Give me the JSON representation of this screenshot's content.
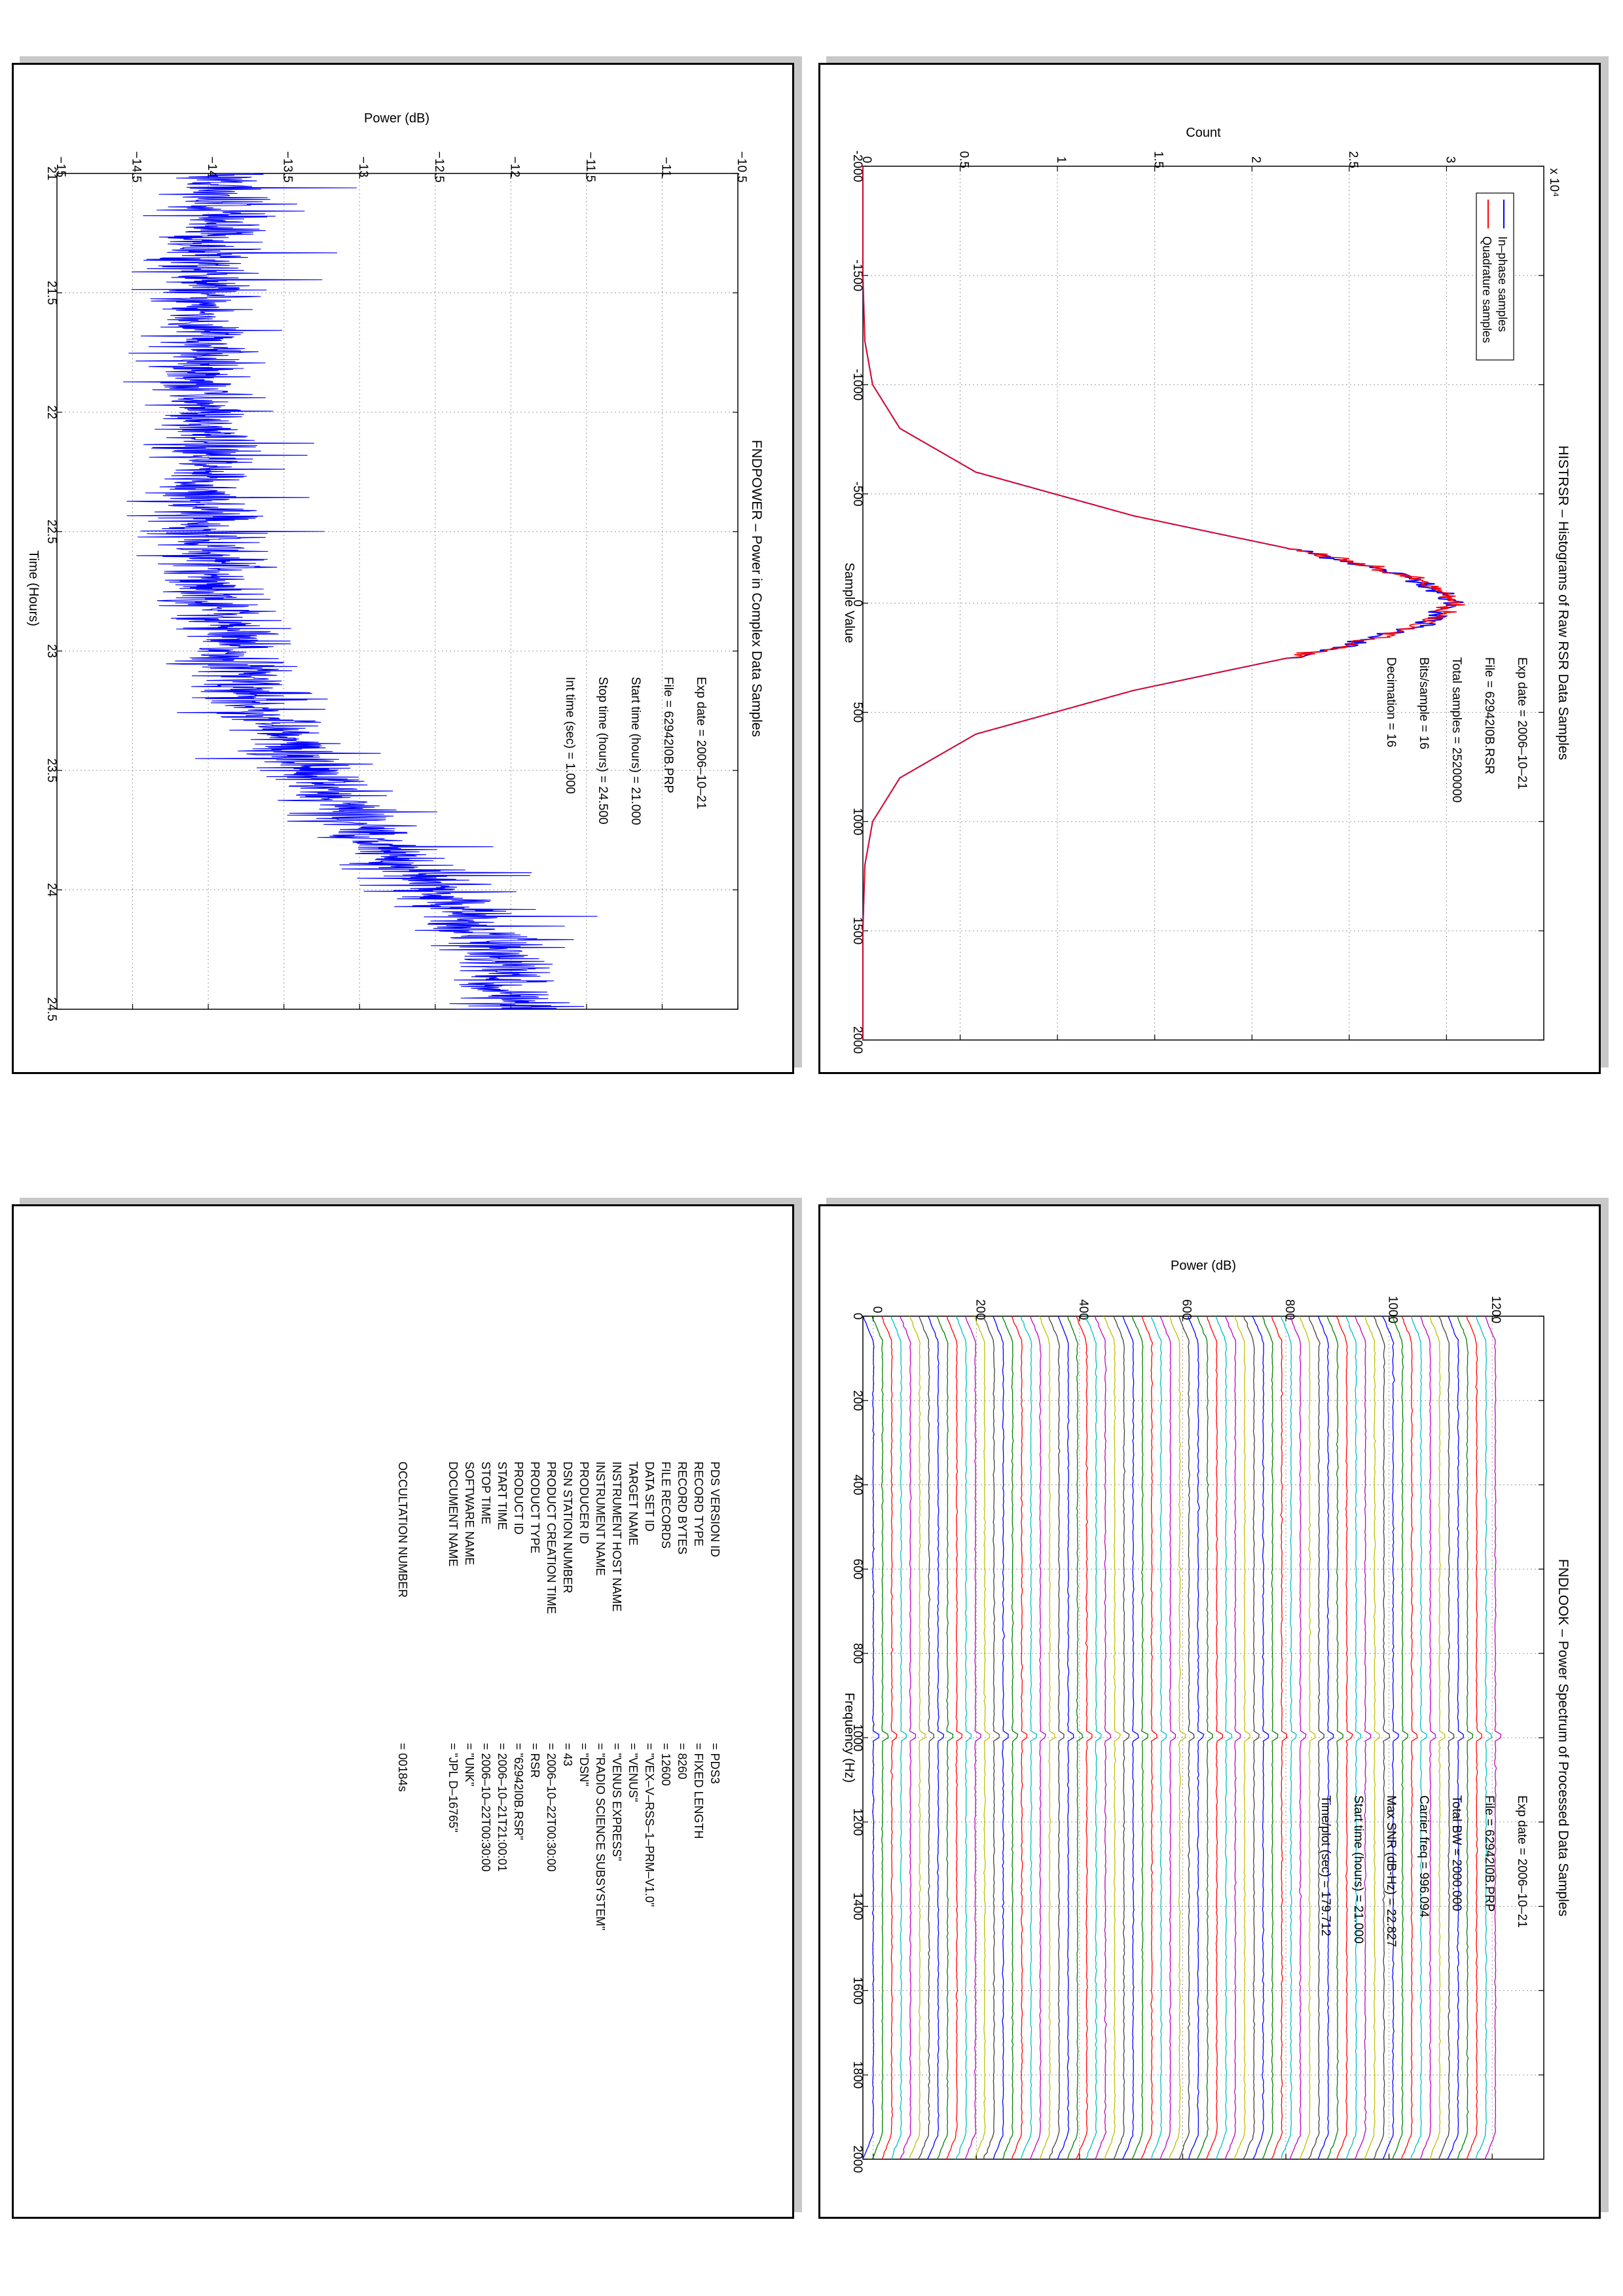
{
  "chart_data": [
    {
      "type": "line",
      "title": "HISTRSR – Histograms of Raw RSR Data Samples",
      "xlabel": "Sample Value",
      "ylabel": "Count",
      "y_multiplier": "x 10⁴",
      "xlim": [
        -2000,
        2000
      ],
      "ylim": [
        0,
        3.5
      ],
      "xticks": [
        "-2000",
        "-1500",
        "-1000",
        "-500",
        "0",
        "500",
        "1000",
        "1500",
        "2000"
      ],
      "yticks": [
        "0",
        "0.5",
        "1",
        "1.5",
        "2",
        "2.5",
        "3"
      ],
      "grid": true,
      "legend_position": "top-right",
      "series": [
        {
          "name": "In–phase samples",
          "color": "#0000ff",
          "x": [
            -2000,
            -1500,
            -1200,
            -1000,
            -800,
            -600,
            -400,
            -300,
            -200,
            -100,
            0,
            100,
            200,
            300,
            400,
            600,
            800,
            1000,
            1200,
            1500,
            2000
          ],
          "y": [
            0,
            0,
            0.01,
            0.05,
            0.19,
            0.58,
            1.39,
            1.92,
            2.46,
            2.88,
            3.04,
            2.88,
            2.46,
            1.92,
            1.39,
            0.58,
            0.19,
            0.05,
            0.01,
            0,
            0
          ]
        },
        {
          "name": "Quadrature samples",
          "color": "#ff0000",
          "x": [
            -2000,
            -1500,
            -1200,
            -1000,
            -800,
            -600,
            -400,
            -300,
            -200,
            -100,
            0,
            100,
            200,
            300,
            400,
            600,
            800,
            1000,
            1200,
            1500,
            2000
          ],
          "y": [
            0,
            0,
            0.01,
            0.05,
            0.19,
            0.58,
            1.39,
            1.92,
            2.46,
            2.88,
            3.04,
            2.88,
            2.46,
            1.92,
            1.39,
            0.58,
            0.19,
            0.05,
            0.01,
            0,
            0
          ]
        }
      ],
      "annotations": [
        "Exp date = 2006–10–21",
        "File = 62942I0B.RSR",
        "Total samples =   25200000",
        "Bits/sample   =        16",
        "Decimation   =        16"
      ]
    },
    {
      "type": "line",
      "title": "FNDPOWER – Power in Complex Data Samples",
      "xlabel": "Time (Hours)",
      "ylabel": "Power (dB)",
      "xlim": [
        21,
        24.5
      ],
      "ylim": [
        -15,
        -10.5
      ],
      "xticks": [
        "21",
        "21.5",
        "22",
        "22.5",
        "23",
        "23.5",
        "24",
        "24.5"
      ],
      "yticks": [
        "−15",
        "−14.5",
        "−14",
        "−13.5",
        "−13",
        "−12.5",
        "−12",
        "−11.5",
        "−11",
        "−10.5"
      ],
      "grid": true,
      "series": [
        {
          "name": "",
          "color": "#0000ff",
          "x": [
            21.0,
            21.25,
            21.5,
            21.75,
            22.0,
            22.25,
            22.5,
            22.75,
            23.0,
            23.25,
            23.5,
            23.75,
            24.0,
            24.25,
            24.5
          ],
          "y": [
            -13.9,
            -14.0,
            -14.05,
            -14.05,
            -14.05,
            -14.05,
            -14.0,
            -13.95,
            -13.85,
            -13.65,
            -13.35,
            -12.95,
            -12.5,
            -12.1,
            -12.0
          ]
        }
      ],
      "annotations": [
        "Exp date = 2006–10–21",
        "File = 62942I0B.PRP",
        "Start time (hours) = 21.000",
        "Stop time (hours)  = 24.500",
        "Int time (sec) =      1.000"
      ]
    },
    {
      "type": "line",
      "title": "FNDLOOK – Power Spectrum of Processed Data Samples",
      "xlabel": "Frequency (Hz)",
      "ylabel": "Power (dB)",
      "xlim": [
        0,
        2000
      ],
      "ylim": [
        -20,
        1300
      ],
      "xticks": [
        "0",
        "200",
        "400",
        "600",
        "800",
        "1000",
        "1200",
        "1400",
        "1600",
        "1800",
        "2000"
      ],
      "yticks": [
        "0",
        "200",
        "400",
        "600",
        "800",
        "1000",
        "1200"
      ],
      "grid": true,
      "series_count": 68,
      "series_offset_db": 18,
      "series_colors": [
        "#0000ff",
        "#008000",
        "#ff0000",
        "#00bfbf",
        "#bf00bf",
        "#bfbf00",
        "#404040"
      ],
      "carrier_frequency_hz": 996.094,
      "annotations": [
        "Exp date = 2006–10–21",
        "File = 62942I0B.PRP",
        "Total BW =       2000.000",
        "Carrier freq =    996.094",
        "Max SNR (dB-Hz) =     22.827",
        "Start time (hours) = 21.000",
        "Time/plot (sec) =    179.712"
      ]
    }
  ],
  "label_panel": {
    "rows": [
      {
        "key": "PDS VERSION ID",
        "value": "=  PDS3"
      },
      {
        "key": "RECORD TYPE",
        "value": "=  FIXED LENGTH"
      },
      {
        "key": "RECORD BYTES",
        "value": "=  8260"
      },
      {
        "key": "FILE RECORDS",
        "value": "=  12600"
      },
      {
        "key": "DATA SET ID",
        "value": "=  \"VEX–V–RSS–1–PRM–V1.0\""
      },
      {
        "key": "TARGET NAME",
        "value": "=  \"VENUS\""
      },
      {
        "key": "INSTRUMENT HOST NAME",
        "value": "=  \"VENUS EXPRESS\""
      },
      {
        "key": "INSTRUMENT NAME",
        "value": "=  \"RADIO SCIENCE SUBSYSTEM\""
      },
      {
        "key": "PRODUCER ID",
        "value": "=  \"DSN\""
      },
      {
        "key": "DSN STATION NUMBER",
        "value": "=  43"
      },
      {
        "key": "PRODUCT CREATION TIME",
        "value": "=  2006–10–22T00:30:00"
      },
      {
        "key": "PRODUCT TYPE",
        "value": "=  RSR"
      },
      {
        "key": "PRODUCT ID",
        "value": "=  \"62942I0B.RSR\""
      },
      {
        "key": "START TIME",
        "value": "=  2006–10–21T21:00:01"
      },
      {
        "key": "STOP TIME",
        "value": "=  2006–10–22T00:30:00"
      },
      {
        "key": "SOFTWARE NAME",
        "value": "=  \"UNK\""
      },
      {
        "key": "DOCUMENT NAME",
        "value": "=  \"JPL D–16765\""
      }
    ],
    "occultation": {
      "key": "OCCULTATION NUMBER",
      "value": "=  00184s"
    }
  }
}
